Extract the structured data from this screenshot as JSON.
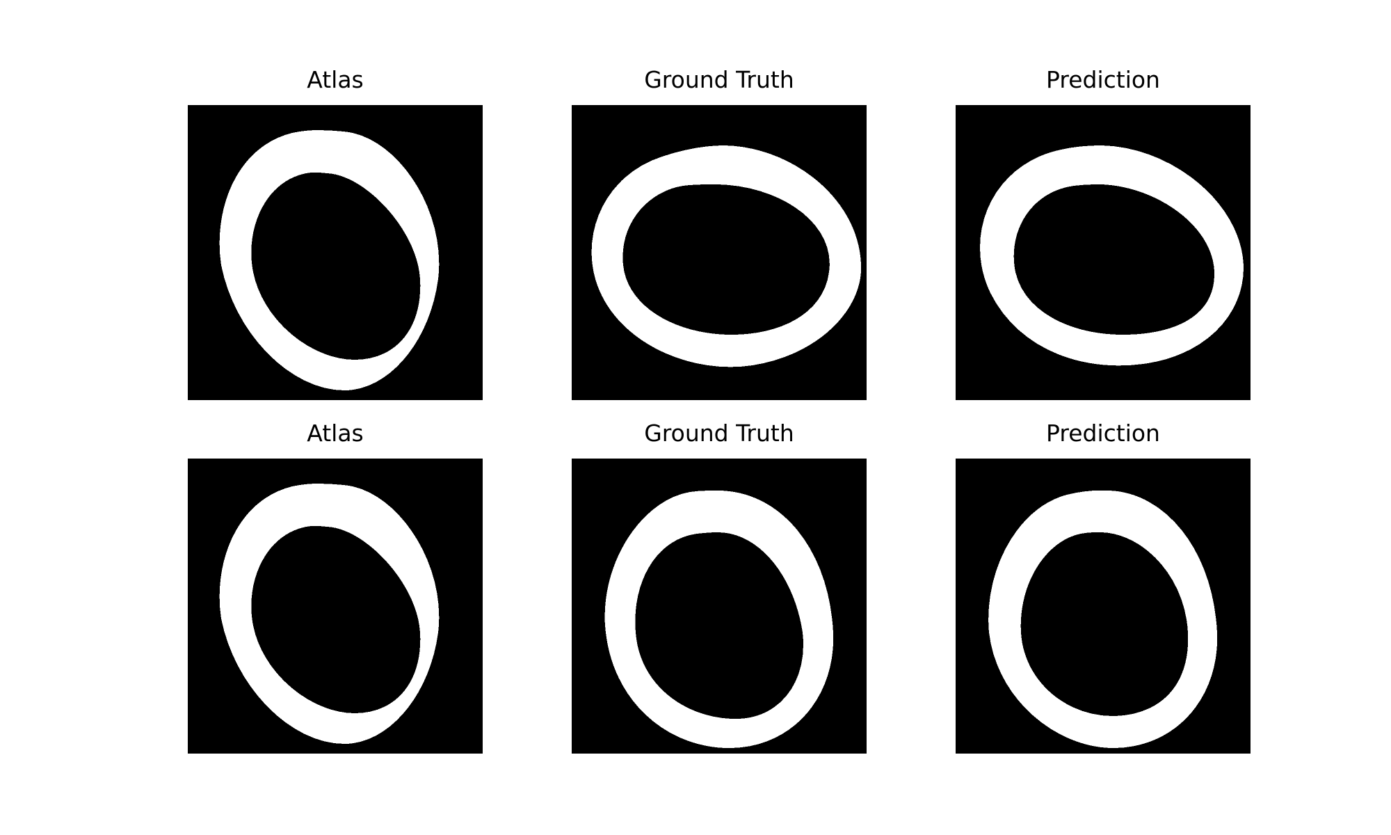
{
  "figure": {
    "background": "#ffffff",
    "image_background": "#000000",
    "ring_color": "#ffffff"
  },
  "panels": [
    {
      "title": "Atlas"
    },
    {
      "title": "Ground Truth"
    },
    {
      "title": "Prediction"
    },
    {
      "title": "Atlas"
    },
    {
      "title": "Ground Truth"
    },
    {
      "title": "Prediction"
    }
  ]
}
